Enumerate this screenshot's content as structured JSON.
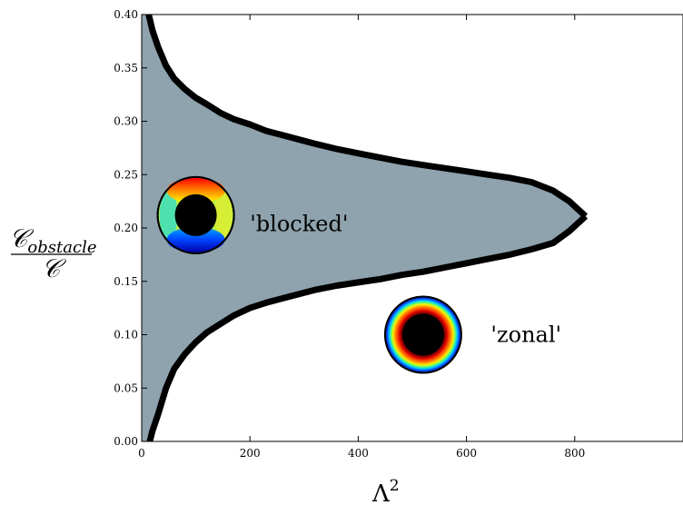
{
  "chart_data": {
    "type": "area",
    "title": "",
    "xlabel_base": "Λ",
    "xlabel_exp": "2",
    "ylabel_num": "𝒞",
    "ylabel_num_sub": "obstacle",
    "ylabel_den": "𝒞",
    "xlim": [
      0,
      1000
    ],
    "ylim": [
      0,
      0.4
    ],
    "xticks": [
      "0",
      "200",
      "400",
      "600",
      "800"
    ],
    "xtick_values": [
      0,
      200,
      400,
      600,
      800
    ],
    "yticks": [
      "0.00",
      "0.05",
      "0.10",
      "0.15",
      "0.20",
      "0.25",
      "0.30",
      "0.35",
      "0.40"
    ],
    "ytick_values": [
      0,
      0.05,
      0.1,
      0.15,
      0.2,
      0.25,
      0.3,
      0.35,
      0.4
    ],
    "fill_color": "#8fa3ae",
    "boundary_color": "#000000",
    "boundary_upper": {
      "x": [
        13,
        20,
        30,
        45,
        60,
        80,
        100,
        120,
        145,
        170,
        200,
        230,
        260,
        290,
        320,
        360,
        400,
        440,
        480,
        520,
        560,
        600,
        640,
        680,
        720,
        760,
        790,
        820
      ],
      "y": [
        0.4,
        0.385,
        0.37,
        0.352,
        0.34,
        0.33,
        0.322,
        0.316,
        0.308,
        0.302,
        0.297,
        0.291,
        0.287,
        0.283,
        0.279,
        0.274,
        0.27,
        0.266,
        0.262,
        0.259,
        0.256,
        0.253,
        0.25,
        0.247,
        0.243,
        0.235,
        0.225,
        0.211
      ]
    },
    "boundary_lower": {
      "x": [
        820,
        790,
        760,
        720,
        680,
        640,
        600,
        560,
        520,
        480,
        440,
        400,
        360,
        320,
        290,
        260,
        230,
        200,
        170,
        145,
        120,
        100,
        80,
        60,
        45,
        30,
        20,
        15
      ],
      "y": [
        0.211,
        0.197,
        0.186,
        0.18,
        0.175,
        0.171,
        0.167,
        0.163,
        0.159,
        0.156,
        0.152,
        0.149,
        0.146,
        0.142,
        0.138,
        0.134,
        0.13,
        0.125,
        0.118,
        0.11,
        0.102,
        0.093,
        0.082,
        0.068,
        0.05,
        0.025,
        0.01,
        0.0
      ]
    },
    "regions": [
      {
        "label": "'blocked'",
        "x": 200,
        "y": 0.204
      },
      {
        "label": "'zonal'",
        "x": 645,
        "y": 0.1
      }
    ],
    "insets": [
      {
        "type": "blocked",
        "cx": 100,
        "cy": 0.212
      },
      {
        "type": "zonal",
        "cx": 520,
        "cy": 0.1
      }
    ]
  }
}
